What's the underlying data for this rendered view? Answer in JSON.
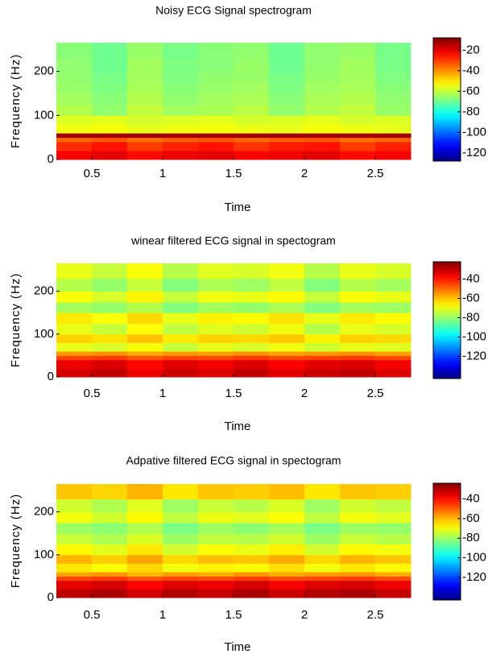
{
  "chart_data": [
    {
      "type": "spectrogram",
      "title": "Noisy ECG Signal spectrogram",
      "xlabel": "Time",
      "ylabel": "Frequency (Hz)",
      "xlim": [
        0.25,
        2.75
      ],
      "ylim": [
        0,
        265
      ],
      "xticks": [
        0.5,
        1,
        1.5,
        2,
        2.5
      ],
      "yticks": [
        0,
        100,
        200
      ],
      "x_edges": [
        0.25,
        0.5,
        0.75,
        1,
        1.25,
        1.5,
        1.75,
        2,
        2.25,
        2.5,
        2.75
      ],
      "y_edges": [
        0,
        20,
        40,
        50,
        60,
        80,
        100,
        125,
        150,
        175,
        200,
        230,
        265
      ],
      "colormap": "jet",
      "clim": [
        -128,
        -8
      ],
      "cticks": [
        -20,
        -40,
        -60,
        -80,
        -100,
        -120
      ],
      "values": [
        [
          -22,
          -20,
          -24,
          -21,
          -20,
          -23,
          -21,
          -20,
          -24,
          -22
        ],
        [
          -28,
          -25,
          -30,
          -27,
          -25,
          -29,
          -26,
          -25,
          -30,
          -27
        ],
        [
          -35,
          -33,
          -36,
          -34,
          -33,
          -35,
          -34,
          -33,
          -36,
          -35
        ],
        [
          -12,
          -12,
          -12,
          -12,
          -12,
          -12,
          -12,
          -12,
          -12,
          -12
        ],
        [
          -55,
          -54,
          -56,
          -55,
          -54,
          -55,
          -56,
          -54,
          -55,
          -56
        ],
        [
          -57,
          -56,
          -58,
          -57,
          -56,
          -58,
          -57,
          -56,
          -58,
          -57
        ],
        [
          -62,
          -66,
          -60,
          -64,
          -63,
          -61,
          -66,
          -62,
          -60,
          -65
        ],
        [
          -64,
          -67,
          -62,
          -66,
          -64,
          -63,
          -67,
          -63,
          -62,
          -66
        ],
        [
          -65,
          -68,
          -63,
          -67,
          -65,
          -64,
          -68,
          -64,
          -63,
          -67
        ],
        [
          -66,
          -69,
          -64,
          -68,
          -66,
          -65,
          -69,
          -65,
          -64,
          -68
        ],
        [
          -66,
          -70,
          -64,
          -68,
          -67,
          -65,
          -70,
          -66,
          -64,
          -69
        ],
        [
          -67,
          -70,
          -65,
          -69,
          -67,
          -66,
          -70,
          -66,
          -65,
          -69
        ]
      ]
    },
    {
      "type": "spectrogram",
      "title": "winear filtered ECG signal in spectogram",
      "xlabel": "Time",
      "ylabel": "Frequency (Hz)",
      "xlim": [
        0.25,
        2.75
      ],
      "ylim": [
        0,
        265
      ],
      "xticks": [
        0.5,
        1,
        1.5,
        2,
        2.5
      ],
      "yticks": [
        0,
        100,
        200
      ],
      "x_edges": [
        0.25,
        0.5,
        0.75,
        1,
        1.25,
        1.5,
        1.75,
        2,
        2.25,
        2.5,
        2.75
      ],
      "y_edges": [
        0,
        20,
        40,
        50,
        60,
        80,
        100,
        125,
        150,
        175,
        200,
        230,
        265
      ],
      "colormap": "jet",
      "clim": [
        -143,
        -22
      ],
      "cticks": [
        -40,
        -60,
        -80,
        -100,
        -120
      ],
      "values": [
        [
          -32,
          -30,
          -35,
          -31,
          -33,
          -30,
          -34,
          -31,
          -30,
          -33
        ],
        [
          -35,
          -33,
          -38,
          -34,
          -36,
          -33,
          -37,
          -34,
          -33,
          -36
        ],
        [
          -45,
          -44,
          -47,
          -45,
          -46,
          -44,
          -46,
          -45,
          -44,
          -46
        ],
        [
          -55,
          -54,
          -57,
          -55,
          -56,
          -54,
          -56,
          -55,
          -54,
          -56
        ],
        [
          -70,
          -72,
          -68,
          -74,
          -70,
          -72,
          -69,
          -73,
          -70,
          -71
        ],
        [
          -62,
          -64,
          -60,
          -65,
          -62,
          -63,
          -61,
          -66,
          -62,
          -63
        ],
        [
          -70,
          -74,
          -68,
          -75,
          -71,
          -73,
          -69,
          -76,
          -70,
          -72
        ],
        [
          -65,
          -68,
          -63,
          -70,
          -66,
          -67,
          -64,
          -70,
          -65,
          -67
        ],
        [
          -78,
          -80,
          -76,
          -82,
          -78,
          -80,
          -77,
          -82,
          -78,
          -79
        ],
        [
          -68,
          -72,
          -66,
          -74,
          -69,
          -70,
          -67,
          -74,
          -68,
          -70
        ],
        [
          -76,
          -80,
          -74,
          -82,
          -77,
          -79,
          -75,
          -82,
          -76,
          -78
        ],
        [
          -70,
          -74,
          -68,
          -76,
          -71,
          -72,
          -69,
          -76,
          -70,
          -72
        ]
      ]
    },
    {
      "type": "spectrogram",
      "title": "Adpative filtered ECG signal in spectogram",
      "xlabel": "Time",
      "ylabel": "Frequency (Hz)",
      "xlim": [
        0.25,
        2.75
      ],
      "ylim": [
        0,
        265
      ],
      "xticks": [
        0.5,
        1,
        1.5,
        2,
        2.5
      ],
      "yticks": [
        0,
        100,
        200
      ],
      "x_edges": [
        0.25,
        0.5,
        0.75,
        1,
        1.25,
        1.5,
        1.75,
        2,
        2.25,
        2.5,
        2.75
      ],
      "y_edges": [
        0,
        20,
        40,
        50,
        60,
        80,
        100,
        125,
        150,
        175,
        200,
        230,
        265
      ],
      "colormap": "jet",
      "clim": [
        -143,
        -24
      ],
      "cticks": [
        -40,
        -60,
        -80,
        -100,
        -120
      ],
      "values": [
        [
          -31,
          -29,
          -34,
          -30,
          -32,
          -29,
          -33,
          -30,
          -29,
          -32
        ],
        [
          -36,
          -34,
          -39,
          -35,
          -37,
          -34,
          -38,
          -35,
          -34,
          -37
        ],
        [
          -47,
          -46,
          -49,
          -47,
          -48,
          -46,
          -48,
          -47,
          -46,
          -48
        ],
        [
          -58,
          -56,
          -60,
          -57,
          -59,
          -56,
          -59,
          -57,
          -56,
          -59
        ],
        [
          -66,
          -69,
          -64,
          -70,
          -67,
          -68,
          -65,
          -70,
          -66,
          -68
        ],
        [
          -60,
          -63,
          -58,
          -64,
          -61,
          -62,
          -59,
          -64,
          -60,
          -62
        ],
        [
          -68,
          -72,
          -66,
          -74,
          -69,
          -71,
          -67,
          -74,
          -68,
          -70
        ],
        [
          -75,
          -78,
          -73,
          -80,
          -76,
          -77,
          -74,
          -80,
          -75,
          -77
        ],
        [
          -80,
          -82,
          -78,
          -84,
          -80,
          -82,
          -79,
          -84,
          -80,
          -81
        ],
        [
          -70,
          -74,
          -68,
          -76,
          -71,
          -72,
          -69,
          -76,
          -70,
          -72
        ],
        [
          -74,
          -78,
          -72,
          -80,
          -75,
          -77,
          -73,
          -80,
          -74,
          -76
        ],
        [
          -62,
          -64,
          -60,
          -66,
          -62,
          -63,
          -61,
          -66,
          -62,
          -63
        ]
      ]
    }
  ]
}
